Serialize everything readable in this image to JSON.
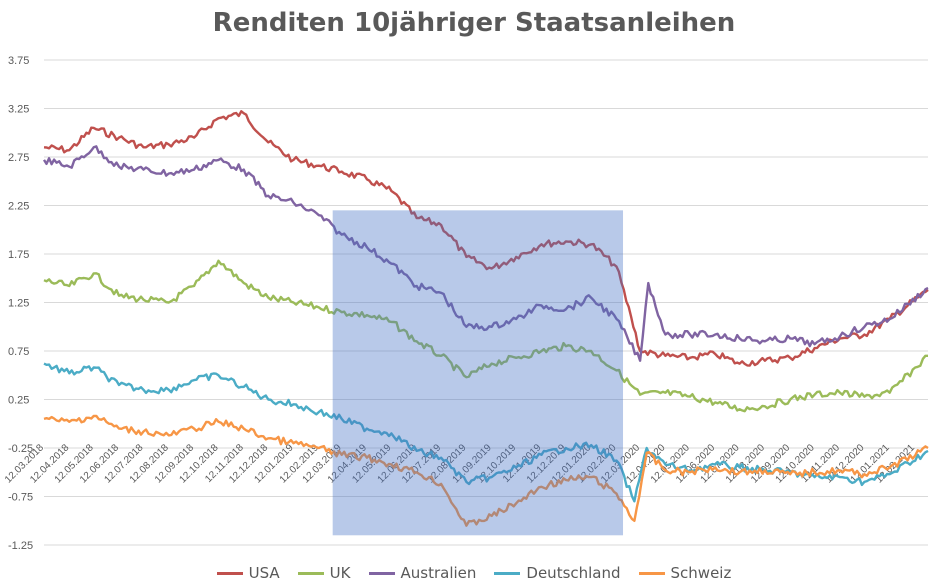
{
  "chart_data": {
    "type": "line",
    "title": "Renditen 10jähriger Staatsanleihen",
    "ylim": [
      -1.25,
      3.75
    ],
    "yticks": [
      3.75,
      3.25,
      2.75,
      2.25,
      1.75,
      1.25,
      0.75,
      0.25,
      -0.25,
      -0.75,
      -1.25
    ],
    "ytick_labels": [
      "3.75",
      "3.25",
      "2.75",
      "2.25",
      "1.75",
      "1.25",
      "0.75",
      "0.25",
      "-0.25",
      "-0.75",
      "-1.25"
    ],
    "x_start": "2018-03-12",
    "x_end": "2021-02-28",
    "xtick_labels": [
      "12.03.2018",
      "12.04.2018",
      "12.05.2018",
      "12.06.2018",
      "12.07.2018",
      "12.08.2018",
      "12.09.2018",
      "12.10.2018",
      "12.11.2018",
      "12.12.2018",
      "12.01.2019",
      "12.02.2019",
      "12.03.2019",
      "12.04.2019",
      "12.05.2019",
      "12.06.2019",
      "12.07.2019",
      "12.08.2019",
      "12.09.2019",
      "12.10.2019",
      "12.11.2019",
      "12.12.2019",
      "12.01.2020",
      "12.02.2020",
      "12.03.2020",
      "12.04.2020",
      "12.05.2020",
      "12.06.2020",
      "12.07.2020",
      "12.08.2020",
      "12.09.2020",
      "12.10.2020",
      "12.11.2020",
      "12.12.2020",
      "12.01.2021",
      "12.02.2021"
    ],
    "grid": "horizontal",
    "legend_position": "bottom",
    "highlight": {
      "x_from": "2019-03-01",
      "x_to": "2020-02-20",
      "y_from": -1.15,
      "y_to": 2.2,
      "color": "#4472C4"
    },
    "series": [
      {
        "name": "USA",
        "color": "#C0504D",
        "points": [
          [
            "2018-03-12",
            2.85
          ],
          [
            "2018-04-12",
            2.82
          ],
          [
            "2018-05-12",
            3.05
          ],
          [
            "2018-06-12",
            2.95
          ],
          [
            "2018-07-12",
            2.85
          ],
          [
            "2018-08-12",
            2.88
          ],
          [
            "2018-09-12",
            2.95
          ],
          [
            "2018-10-12",
            3.15
          ],
          [
            "2018-11-12",
            3.2
          ],
          [
            "2018-12-12",
            2.9
          ],
          [
            "2019-01-12",
            2.72
          ],
          [
            "2019-02-12",
            2.66
          ],
          [
            "2019-03-12",
            2.6
          ],
          [
            "2019-04-12",
            2.52
          ],
          [
            "2019-05-12",
            2.4
          ],
          [
            "2019-06-12",
            2.12
          ],
          [
            "2019-07-12",
            2.05
          ],
          [
            "2019-08-12",
            1.72
          ],
          [
            "2019-09-12",
            1.6
          ],
          [
            "2019-10-12",
            1.72
          ],
          [
            "2019-11-12",
            1.85
          ],
          [
            "2019-12-12",
            1.88
          ],
          [
            "2020-01-12",
            1.85
          ],
          [
            "2020-02-12",
            1.62
          ],
          [
            "2020-03-01",
            1.1
          ],
          [
            "2020-03-12",
            0.75
          ],
          [
            "2020-04-12",
            0.7
          ],
          [
            "2020-05-12",
            0.68
          ],
          [
            "2020-06-12",
            0.72
          ],
          [
            "2020-07-12",
            0.62
          ],
          [
            "2020-08-12",
            0.65
          ],
          [
            "2020-09-12",
            0.68
          ],
          [
            "2020-10-12",
            0.78
          ],
          [
            "2020-11-12",
            0.88
          ],
          [
            "2020-12-12",
            0.92
          ],
          [
            "2021-01-12",
            1.08
          ],
          [
            "2021-02-28",
            1.38
          ]
        ]
      },
      {
        "name": "UK",
        "color": "#9BBB59",
        "points": [
          [
            "2018-03-12",
            1.48
          ],
          [
            "2018-04-12",
            1.42
          ],
          [
            "2018-05-12",
            1.55
          ],
          [
            "2018-06-12",
            1.32
          ],
          [
            "2018-07-12",
            1.28
          ],
          [
            "2018-08-12",
            1.25
          ],
          [
            "2018-09-12",
            1.42
          ],
          [
            "2018-10-12",
            1.68
          ],
          [
            "2018-11-12",
            1.45
          ],
          [
            "2018-12-12",
            1.3
          ],
          [
            "2019-01-12",
            1.25
          ],
          [
            "2019-02-12",
            1.2
          ],
          [
            "2019-03-12",
            1.15
          ],
          [
            "2019-04-12",
            1.12
          ],
          [
            "2019-05-12",
            1.05
          ],
          [
            "2019-06-12",
            0.85
          ],
          [
            "2019-07-12",
            0.7
          ],
          [
            "2019-08-12",
            0.48
          ],
          [
            "2019-09-12",
            0.62
          ],
          [
            "2019-10-12",
            0.68
          ],
          [
            "2019-11-12",
            0.75
          ],
          [
            "2019-12-12",
            0.8
          ],
          [
            "2020-01-12",
            0.75
          ],
          [
            "2020-02-12",
            0.55
          ],
          [
            "2020-03-12",
            0.3
          ],
          [
            "2020-04-12",
            0.32
          ],
          [
            "2020-05-12",
            0.28
          ],
          [
            "2020-06-12",
            0.22
          ],
          [
            "2020-07-12",
            0.15
          ],
          [
            "2020-08-12",
            0.18
          ],
          [
            "2020-09-12",
            0.25
          ],
          [
            "2020-10-12",
            0.3
          ],
          [
            "2020-11-12",
            0.32
          ],
          [
            "2020-12-12",
            0.28
          ],
          [
            "2021-01-12",
            0.32
          ],
          [
            "2021-02-28",
            0.7
          ]
        ]
      },
      {
        "name": "Australien",
        "color": "#8064A2",
        "points": [
          [
            "2018-03-12",
            2.72
          ],
          [
            "2018-04-12",
            2.65
          ],
          [
            "2018-05-12",
            2.85
          ],
          [
            "2018-06-12",
            2.65
          ],
          [
            "2018-07-12",
            2.62
          ],
          [
            "2018-08-12",
            2.58
          ],
          [
            "2018-09-12",
            2.62
          ],
          [
            "2018-10-12",
            2.72
          ],
          [
            "2018-11-12",
            2.62
          ],
          [
            "2018-12-12",
            2.35
          ],
          [
            "2019-01-12",
            2.28
          ],
          [
            "2019-02-12",
            2.15
          ],
          [
            "2019-03-12",
            1.95
          ],
          [
            "2019-04-12",
            1.82
          ],
          [
            "2019-05-12",
            1.65
          ],
          [
            "2019-06-12",
            1.42
          ],
          [
            "2019-07-12",
            1.35
          ],
          [
            "2019-08-12",
            1.0
          ],
          [
            "2019-09-12",
            1.0
          ],
          [
            "2019-10-12",
            1.08
          ],
          [
            "2019-11-12",
            1.22
          ],
          [
            "2019-12-12",
            1.18
          ],
          [
            "2020-01-12",
            1.3
          ],
          [
            "2020-02-12",
            1.08
          ],
          [
            "2020-03-12",
            0.65
          ],
          [
            "2020-03-22",
            1.45
          ],
          [
            "2020-04-12",
            0.92
          ],
          [
            "2020-05-12",
            0.92
          ],
          [
            "2020-06-12",
            0.92
          ],
          [
            "2020-07-12",
            0.88
          ],
          [
            "2020-08-12",
            0.85
          ],
          [
            "2020-09-12",
            0.88
          ],
          [
            "2020-10-12",
            0.82
          ],
          [
            "2020-11-12",
            0.9
          ],
          [
            "2020-12-12",
            1.0
          ],
          [
            "2021-01-12",
            1.08
          ],
          [
            "2021-02-28",
            1.4
          ]
        ]
      },
      {
        "name": "Deutschland",
        "color": "#4BACC6",
        "points": [
          [
            "2018-03-12",
            0.62
          ],
          [
            "2018-04-12",
            0.52
          ],
          [
            "2018-05-12",
            0.58
          ],
          [
            "2018-06-12",
            0.4
          ],
          [
            "2018-07-12",
            0.35
          ],
          [
            "2018-08-12",
            0.35
          ],
          [
            "2018-09-12",
            0.45
          ],
          [
            "2018-10-12",
            0.5
          ],
          [
            "2018-11-12",
            0.38
          ],
          [
            "2018-12-12",
            0.25
          ],
          [
            "2019-01-12",
            0.2
          ],
          [
            "2019-02-12",
            0.12
          ],
          [
            "2019-03-12",
            0.05
          ],
          [
            "2019-04-12",
            -0.05
          ],
          [
            "2019-05-12",
            -0.1
          ],
          [
            "2019-06-12",
            -0.28
          ],
          [
            "2019-07-12",
            -0.35
          ],
          [
            "2019-08-12",
            -0.6
          ],
          [
            "2019-09-12",
            -0.55
          ],
          [
            "2019-10-12",
            -0.45
          ],
          [
            "2019-11-12",
            -0.32
          ],
          [
            "2019-12-12",
            -0.25
          ],
          [
            "2020-01-12",
            -0.22
          ],
          [
            "2020-02-12",
            -0.38
          ],
          [
            "2020-03-05",
            -0.8
          ],
          [
            "2020-03-20",
            -0.25
          ],
          [
            "2020-04-12",
            -0.42
          ],
          [
            "2020-05-12",
            -0.48
          ],
          [
            "2020-06-12",
            -0.42
          ],
          [
            "2020-07-12",
            -0.45
          ],
          [
            "2020-08-12",
            -0.48
          ],
          [
            "2020-09-12",
            -0.5
          ],
          [
            "2020-10-12",
            -0.55
          ],
          [
            "2020-11-12",
            -0.55
          ],
          [
            "2020-12-12",
            -0.6
          ],
          [
            "2021-01-12",
            -0.52
          ],
          [
            "2021-02-28",
            -0.28
          ]
        ]
      },
      {
        "name": "Schweiz",
        "color": "#F79646",
        "points": [
          [
            "2018-03-12",
            0.05
          ],
          [
            "2018-04-12",
            0.02
          ],
          [
            "2018-05-12",
            0.08
          ],
          [
            "2018-06-12",
            -0.05
          ],
          [
            "2018-07-12",
            -0.08
          ],
          [
            "2018-08-12",
            -0.12
          ],
          [
            "2018-09-12",
            -0.05
          ],
          [
            "2018-10-12",
            0.02
          ],
          [
            "2018-11-12",
            -0.05
          ],
          [
            "2018-12-12",
            -0.15
          ],
          [
            "2019-01-12",
            -0.2
          ],
          [
            "2019-02-12",
            -0.25
          ],
          [
            "2019-03-12",
            -0.32
          ],
          [
            "2019-04-12",
            -0.35
          ],
          [
            "2019-05-12",
            -0.42
          ],
          [
            "2019-06-12",
            -0.5
          ],
          [
            "2019-07-12",
            -0.62
          ],
          [
            "2019-08-12",
            -1.05
          ],
          [
            "2019-09-12",
            -0.95
          ],
          [
            "2019-10-12",
            -0.82
          ],
          [
            "2019-11-12",
            -0.65
          ],
          [
            "2019-12-12",
            -0.58
          ],
          [
            "2020-01-12",
            -0.55
          ],
          [
            "2020-02-12",
            -0.72
          ],
          [
            "2020-03-05",
            -1.0
          ],
          [
            "2020-03-20",
            -0.3
          ],
          [
            "2020-04-12",
            -0.48
          ],
          [
            "2020-05-12",
            -0.5
          ],
          [
            "2020-06-12",
            -0.45
          ],
          [
            "2020-07-12",
            -0.5
          ],
          [
            "2020-08-12",
            -0.48
          ],
          [
            "2020-09-12",
            -0.52
          ],
          [
            "2020-10-12",
            -0.5
          ],
          [
            "2020-11-12",
            -0.48
          ],
          [
            "2020-12-12",
            -0.52
          ],
          [
            "2021-01-12",
            -0.45
          ],
          [
            "2021-02-28",
            -0.25
          ]
        ]
      }
    ]
  }
}
